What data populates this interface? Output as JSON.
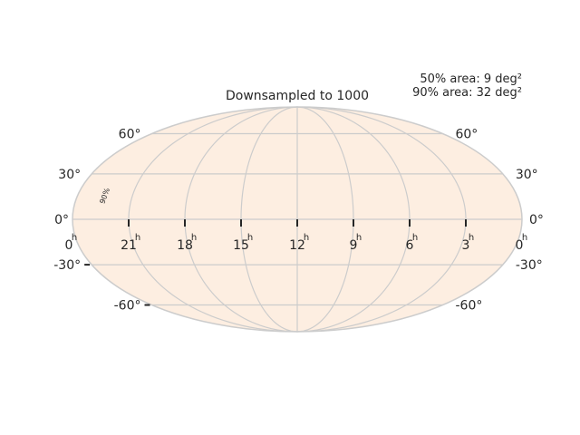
{
  "chart_data": {
    "type": "other",
    "projection": "mollweide",
    "title": "Downsampled to 1000",
    "annotations": {
      "area_50": "50% area: 9 deg²",
      "area_90": "90% area: 32 deg²",
      "contour_label": "90%"
    },
    "ra_ticks": [
      {
        "hours": 24,
        "label": "0",
        "unit": "h"
      },
      {
        "hours": 21,
        "label": "21",
        "unit": "h"
      },
      {
        "hours": 18,
        "label": "18",
        "unit": "h"
      },
      {
        "hours": 15,
        "label": "15",
        "unit": "h"
      },
      {
        "hours": 12,
        "label": "12",
        "unit": "h"
      },
      {
        "hours": 9,
        "label": "9",
        "unit": "h"
      },
      {
        "hours": 6,
        "label": "6",
        "unit": "h"
      },
      {
        "hours": 3,
        "label": "3",
        "unit": "h"
      },
      {
        "hours": 0,
        "label": "0",
        "unit": "h"
      }
    ],
    "dec_ticks": [
      {
        "deg": 60,
        "label": "60°"
      },
      {
        "deg": 30,
        "label": "30°"
      },
      {
        "deg": 0,
        "label": "0°"
      },
      {
        "deg": -30,
        "label": "-30°"
      },
      {
        "deg": -60,
        "label": "-60°"
      }
    ],
    "grid": true,
    "colors": {
      "background_fill": "#fdeee1",
      "grid": "#cccccc",
      "tick": "#262626"
    }
  }
}
